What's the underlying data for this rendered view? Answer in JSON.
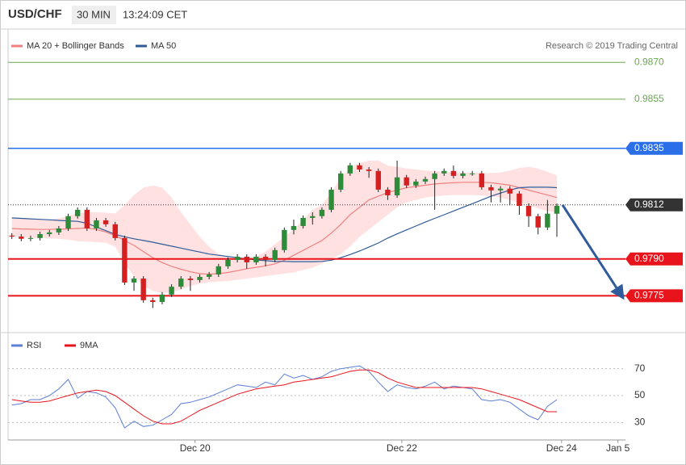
{
  "chart_data": {
    "type": "candlestick",
    "title": "USD/CHF",
    "timeframe": "30 MIN",
    "time": "13:24:09 CET",
    "credit": "Research © 2019 Trading Central",
    "up_color": "#2e8b3a",
    "down_color": "#d42020",
    "x": [
      0,
      1,
      2,
      3,
      4,
      5,
      6,
      7,
      8,
      9,
      10,
      11,
      12,
      13,
      14,
      15,
      16,
      17,
      18,
      19,
      20,
      21,
      22,
      23,
      24,
      25,
      26,
      27,
      28,
      29,
      30,
      31,
      32,
      33,
      34,
      35,
      36,
      37,
      38,
      39,
      40,
      41,
      42,
      43,
      44,
      45,
      46,
      47,
      48,
      49,
      50,
      51,
      52,
      53,
      54,
      55,
      56,
      57,
      58
    ],
    "open": [
      0.97995,
      0.97991,
      0.97982,
      0.97985,
      0.98001,
      0.98008,
      0.98024,
      0.98074,
      0.981,
      0.98024,
      0.98057,
      0.98041,
      0.97985,
      0.97804,
      0.9782,
      0.97732,
      0.97725,
      0.97755,
      0.97787,
      0.9782,
      0.97814,
      0.97827,
      0.97837,
      0.9787,
      0.97896,
      0.97909,
      0.97886,
      0.97909,
      0.97896,
      0.97936,
      0.98018,
      0.98034,
      0.98067,
      0.98074,
      0.981,
      0.98182,
      0.98248,
      0.98281,
      0.98264,
      0.98258,
      0.98182,
      0.98159,
      0.98232,
      0.98199,
      0.98215,
      0.98225,
      0.98248,
      0.98258,
      0.98238,
      0.98248,
      0.98248,
      0.98192,
      0.98179,
      0.98186,
      0.98166,
      0.98116,
      0.98074,
      0.98028,
      0.98084
    ],
    "high": [
      0.98005,
      0.98001,
      0.97995,
      0.98011,
      0.98018,
      0.98034,
      0.98084,
      0.9811,
      0.9811,
      0.98067,
      0.98067,
      0.98051,
      0.97995,
      0.9783,
      0.9783,
      0.97742,
      0.97765,
      0.97797,
      0.9783,
      0.9783,
      0.97837,
      0.97847,
      0.9788,
      0.97906,
      0.97919,
      0.97919,
      0.97919,
      0.97919,
      0.97946,
      0.98028,
      0.9806,
      0.98077,
      0.9809,
      0.9811,
      0.98192,
      0.98258,
      0.98291,
      0.98291,
      0.98274,
      0.98268,
      0.98192,
      0.983,
      0.98242,
      0.98225,
      0.98235,
      0.98258,
      0.98268,
      0.9828,
      0.98258,
      0.98258,
      0.98258,
      0.98202,
      0.98196,
      0.98196,
      0.98176,
      0.98126,
      0.98084,
      0.9814,
      0.98126
    ],
    "low": [
      0.97981,
      0.97972,
      0.97972,
      0.97975,
      0.97991,
      0.97998,
      0.98014,
      0.98064,
      0.98014,
      0.98014,
      0.98031,
      0.97975,
      0.97794,
      0.9777,
      0.97722,
      0.977,
      0.97715,
      0.97745,
      0.97777,
      0.9777,
      0.97804,
      0.97817,
      0.97827,
      0.9786,
      0.97886,
      0.9786,
      0.97876,
      0.9787,
      0.97886,
      0.97926,
      0.98,
      0.98024,
      0.9804,
      0.98064,
      0.9809,
      0.98172,
      0.98238,
      0.98254,
      0.9823,
      0.98172,
      0.9814,
      0.98149,
      0.98189,
      0.98189,
      0.98205,
      0.981,
      0.98238,
      0.98228,
      0.98228,
      0.98238,
      0.98182,
      0.9813,
      0.9813,
      0.9812,
      0.9808,
      0.9803,
      0.98,
      0.98018,
      0.9799
    ],
    "close": [
      0.97991,
      0.97982,
      0.97985,
      0.98001,
      0.98008,
      0.98024,
      0.98074,
      0.981,
      0.98024,
      0.98057,
      0.98041,
      0.97985,
      0.97804,
      0.9782,
      0.97732,
      0.97725,
      0.97755,
      0.97787,
      0.9782,
      0.97814,
      0.97827,
      0.97837,
      0.9787,
      0.97896,
      0.97909,
      0.97886,
      0.97909,
      0.97896,
      0.97936,
      0.98018,
      0.98034,
      0.98067,
      0.98074,
      0.981,
      0.98182,
      0.98248,
      0.98281,
      0.98264,
      0.98258,
      0.98182,
      0.98159,
      0.98232,
      0.98199,
      0.98215,
      0.98225,
      0.98248,
      0.98258,
      0.98238,
      0.98248,
      0.98248,
      0.98192,
      0.98179,
      0.98186,
      0.98166,
      0.98116,
      0.98074,
      0.98028,
      0.98084,
      0.98116
    ],
    "overlays": [
      {
        "name": "MA 20 + Bollinger Bands",
        "color": "#f08080",
        "band_color": "#ffc8c8",
        "values": [
          0.98024,
          0.98022,
          0.98021,
          0.9802,
          0.9802,
          0.98021,
          0.98022,
          0.98024,
          0.98026,
          0.9802,
          0.9801,
          0.97995,
          0.97975,
          0.97955,
          0.9793,
          0.97905,
          0.97885,
          0.9787,
          0.97858,
          0.97848,
          0.9784,
          0.97838,
          0.9784,
          0.97845,
          0.97852,
          0.9786,
          0.97866,
          0.97872,
          0.9788,
          0.97895,
          0.97915,
          0.97935,
          0.97955,
          0.97975,
          0.98005,
          0.9804,
          0.9808,
          0.9811,
          0.9814,
          0.98155,
          0.9817,
          0.9818,
          0.9819,
          0.98195,
          0.982,
          0.98205,
          0.98208,
          0.9821,
          0.98212,
          0.98212,
          0.98212,
          0.9821,
          0.98205,
          0.982,
          0.9819,
          0.9818,
          0.9817,
          0.9816,
          0.9815
        ],
        "upper": [
          0.98067,
          0.98065,
          0.98063,
          0.98062,
          0.98061,
          0.98065,
          0.98075,
          0.98085,
          0.9809,
          0.9809,
          0.98088,
          0.98085,
          0.9812,
          0.9816,
          0.9819,
          0.98199,
          0.9819,
          0.9815,
          0.9809,
          0.9804,
          0.9799,
          0.9795,
          0.9792,
          0.9791,
          0.97905,
          0.97905,
          0.9791,
          0.9793,
          0.9796,
          0.9799,
          0.9802,
          0.9806,
          0.981,
          0.9812,
          0.9817,
          0.9823,
          0.9827,
          0.9829,
          0.983,
          0.983,
          0.9828,
          0.98275,
          0.98268,
          0.98265,
          0.9826,
          0.98258,
          0.98255,
          0.98252,
          0.98252,
          0.9825,
          0.9825,
          0.9825,
          0.98252,
          0.9826,
          0.9827,
          0.98275,
          0.98268,
          0.98255,
          0.9824
        ],
        "lower": [
          0.9799,
          0.97988,
          0.97986,
          0.97985,
          0.97984,
          0.97982,
          0.97978,
          0.97972,
          0.9797,
          0.97968,
          0.97966,
          0.9795,
          0.9788,
          0.9783,
          0.9779,
          0.9777,
          0.9776,
          0.97765,
          0.97775,
          0.9779,
          0.978,
          0.97805,
          0.97808,
          0.9781,
          0.97815,
          0.9782,
          0.97825,
          0.9783,
          0.97835,
          0.9784,
          0.97845,
          0.97855,
          0.97865,
          0.9788,
          0.979,
          0.9792,
          0.9795,
          0.9799,
          0.9802,
          0.9805,
          0.9808,
          0.9811,
          0.9813,
          0.9814,
          0.9815,
          0.98155,
          0.98158,
          0.9816,
          0.9816,
          0.9816,
          0.98158,
          0.98155,
          0.9815,
          0.9814,
          0.9813,
          0.9812,
          0.98105,
          0.98095,
          0.9809
        ]
      },
      {
        "name": "MA 50",
        "color": "#2f5b9a",
        "values": [
          0.98067,
          0.98065,
          0.98063,
          0.98061,
          0.98059,
          0.98057,
          0.98055,
          0.98053,
          0.98045,
          0.9803,
          0.98015,
          0.98,
          0.9799,
          0.97982,
          0.97975,
          0.97968,
          0.9796,
          0.97952,
          0.97944,
          0.97936,
          0.97928,
          0.9792,
          0.97915,
          0.9791,
          0.97905,
          0.979,
          0.97896,
          0.97893,
          0.9789,
          0.9789,
          0.97889,
          0.97889,
          0.97889,
          0.9789,
          0.97895,
          0.97905,
          0.97918,
          0.97932,
          0.97948,
          0.97965,
          0.97985,
          0.98002,
          0.98018,
          0.98034,
          0.9805,
          0.98065,
          0.9808,
          0.98095,
          0.9811,
          0.98125,
          0.9814,
          0.98155,
          0.98168,
          0.9818,
          0.9819,
          0.98192,
          0.98192,
          0.98192,
          0.9819
        ]
      }
    ],
    "levels": [
      {
        "value": 0.987,
        "label": "0.9870",
        "color": "#6aa84f",
        "width": 1,
        "style": "solid",
        "boxed": false
      },
      {
        "value": 0.9855,
        "label": "0.9855",
        "color": "#6aa84f",
        "width": 1,
        "style": "solid",
        "boxed": false
      },
      {
        "value": 0.9835,
        "label": "0.9835",
        "color": "#2a6fe8",
        "width": 1.5,
        "style": "solid",
        "boxed": true
      },
      {
        "value": 0.9812,
        "label": "0.9812",
        "color": "#333333",
        "width": 1,
        "style": "dotted",
        "boxed": true
      },
      {
        "value": 0.979,
        "label": "0.9790",
        "color": "#e8141c",
        "width": 2,
        "style": "solid",
        "boxed": true
      },
      {
        "value": 0.9775,
        "label": "0.9775",
        "color": "#e8141c",
        "width": 2,
        "style": "solid",
        "boxed": true
      }
    ],
    "forecast": {
      "color": "#2f5b9a",
      "x": [
        58.6,
        64.9
      ],
      "values": [
        0.9812,
        0.9775
      ]
    },
    "xlim": [
      -0.4,
      65.3
    ],
    "ylim": [
      0.9761,
      0.9876
    ],
    "xticks": [
      {
        "value": 19.5,
        "label": "Dec 20"
      },
      {
        "value": 41.5,
        "label": "Dec 22"
      },
      {
        "value": 58.5,
        "label": "Dec 24"
      },
      {
        "value": 64.5,
        "label": "Jan 5"
      }
    ],
    "rsi": {
      "ylim": [
        20,
        86
      ],
      "yticks": [
        30,
        50,
        70
      ],
      "grid": true,
      "series": [
        {
          "name": "RSI",
          "color": "#5b7fd6",
          "values": [
            43,
            44,
            47,
            47,
            50,
            55,
            62,
            48,
            53,
            52,
            49,
            41,
            26,
            31,
            27,
            28,
            32,
            36,
            44,
            45,
            47,
            49,
            52,
            55,
            58,
            57,
            56,
            60,
            58,
            66,
            63,
            65,
            62,
            64,
            68,
            70,
            71,
            72,
            68,
            60,
            53,
            58,
            56,
            55,
            57,
            60,
            55,
            57,
            56,
            55,
            47,
            46,
            47,
            45,
            40,
            35,
            32,
            42,
            47
          ]
        },
        {
          "name": "9MA",
          "color": "#e8141c",
          "values": [
            47,
            46,
            45,
            45,
            46,
            48,
            50,
            52,
            53,
            54,
            53,
            50,
            45,
            40,
            35,
            31,
            29,
            29,
            31,
            35,
            39,
            42,
            45,
            48,
            51,
            53,
            55,
            56,
            57,
            58,
            60,
            61,
            62,
            63,
            64,
            66,
            68,
            69,
            69,
            67,
            63,
            60,
            58,
            56,
            56,
            56,
            56,
            56,
            56,
            56,
            55,
            53,
            51,
            49,
            47,
            44,
            41,
            38,
            38
          ]
        }
      ]
    }
  }
}
